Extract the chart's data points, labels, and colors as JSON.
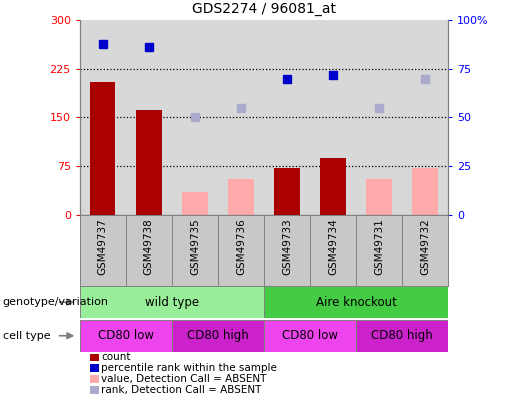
{
  "title": "GDS2274 / 96081_at",
  "samples": [
    "GSM49737",
    "GSM49738",
    "GSM49735",
    "GSM49736",
    "GSM49733",
    "GSM49734",
    "GSM49731",
    "GSM49732"
  ],
  "count_values": [
    205,
    162,
    null,
    null,
    72,
    88,
    null,
    null
  ],
  "count_absent_values": [
    null,
    null,
    35,
    55,
    null,
    null,
    55,
    72
  ],
  "percentile_values": [
    88,
    86,
    null,
    null,
    70,
    72,
    null,
    null
  ],
  "percentile_absent_values": [
    null,
    null,
    50,
    55,
    null,
    null,
    55,
    70
  ],
  "left_ylim": [
    0,
    300
  ],
  "right_ylim": [
    0,
    100
  ],
  "left_yticks": [
    0,
    75,
    150,
    225,
    300
  ],
  "right_yticks": [
    0,
    25,
    50,
    75,
    100
  ],
  "right_yticklabels": [
    "0",
    "25",
    "50",
    "75",
    "100%"
  ],
  "bar_color_present": "#aa0000",
  "bar_color_absent": "#ffaaaa",
  "dot_color_present": "#0000cc",
  "dot_color_absent": "#aaaacc",
  "bg_color": "#ffffff",
  "plot_bg_color": "#d8d8d8",
  "sample_bg_color": "#c8c8c8",
  "genotype_groups": [
    {
      "label": "wild type",
      "start": 0,
      "end": 4,
      "color": "#99ee99"
    },
    {
      "label": "Aire knockout",
      "start": 4,
      "end": 8,
      "color": "#44cc44"
    }
  ],
  "cell_type_groups": [
    {
      "label": "CD80 low",
      "start": 0,
      "end": 2,
      "color": "#ee44ee"
    },
    {
      "label": "CD80 high",
      "start": 2,
      "end": 4,
      "color": "#cc22cc"
    },
    {
      "label": "CD80 low",
      "start": 4,
      "end": 6,
      "color": "#ee44ee"
    },
    {
      "label": "CD80 high",
      "start": 6,
      "end": 8,
      "color": "#cc22cc"
    }
  ],
  "legend_items": [
    {
      "label": "count",
      "color": "#aa0000"
    },
    {
      "label": "percentile rank within the sample",
      "color": "#0000cc"
    },
    {
      "label": "value, Detection Call = ABSENT",
      "color": "#ffaaaa"
    },
    {
      "label": "rank, Detection Call = ABSENT",
      "color": "#aaaacc"
    }
  ]
}
